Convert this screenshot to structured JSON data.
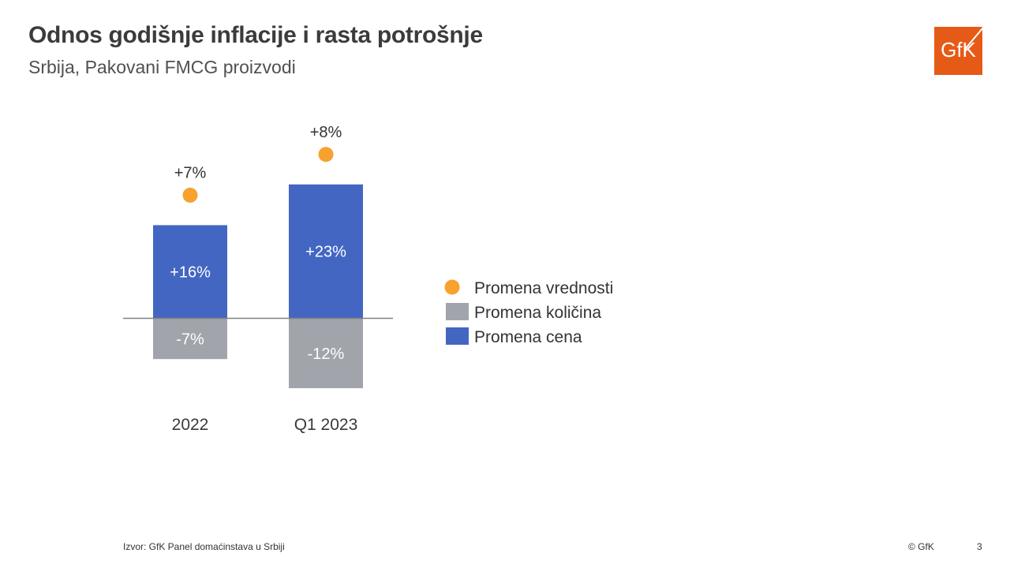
{
  "header": {
    "title": "Odnos godišnje inflacije i rasta potrošnje",
    "subtitle": "Srbija, Pakovani FMCG proizvodi"
  },
  "logo": {
    "text": "GfK",
    "color": "#e55a16"
  },
  "footer": {
    "source": "Izvor: GfK Panel domaćinstava u Srbiji",
    "copyright": "© GfK",
    "page_number": "3"
  },
  "chart_data": {
    "type": "bar",
    "categories": [
      "2022",
      "Q1 2023"
    ],
    "series": [
      {
        "name": "Promena cena",
        "type": "bar",
        "values": [
          16,
          23
        ],
        "labels": [
          "+16%",
          "+23%"
        ],
        "color": "#4366c3"
      },
      {
        "name": "Promena količina",
        "type": "bar",
        "values": [
          -7,
          -12
        ],
        "labels": [
          "-7%",
          "-12%"
        ],
        "color": "#a1a5ab"
      },
      {
        "name": "Promena vrednosti",
        "type": "scatter",
        "values": [
          7,
          8
        ],
        "labels": [
          "+7%",
          "+8%"
        ],
        "color": "#f8a12e"
      }
    ],
    "legend": {
      "position": "right",
      "items": [
        {
          "label": "Promena vrednosti",
          "marker": "circle",
          "color": "#f8a12e"
        },
        {
          "label": "Promena količina",
          "marker": "square",
          "color": "#a1a5ab"
        },
        {
          "label": "Promena cena",
          "marker": "square",
          "color": "#4366c3"
        }
      ]
    },
    "grid": false,
    "stacked": "diverging"
  }
}
